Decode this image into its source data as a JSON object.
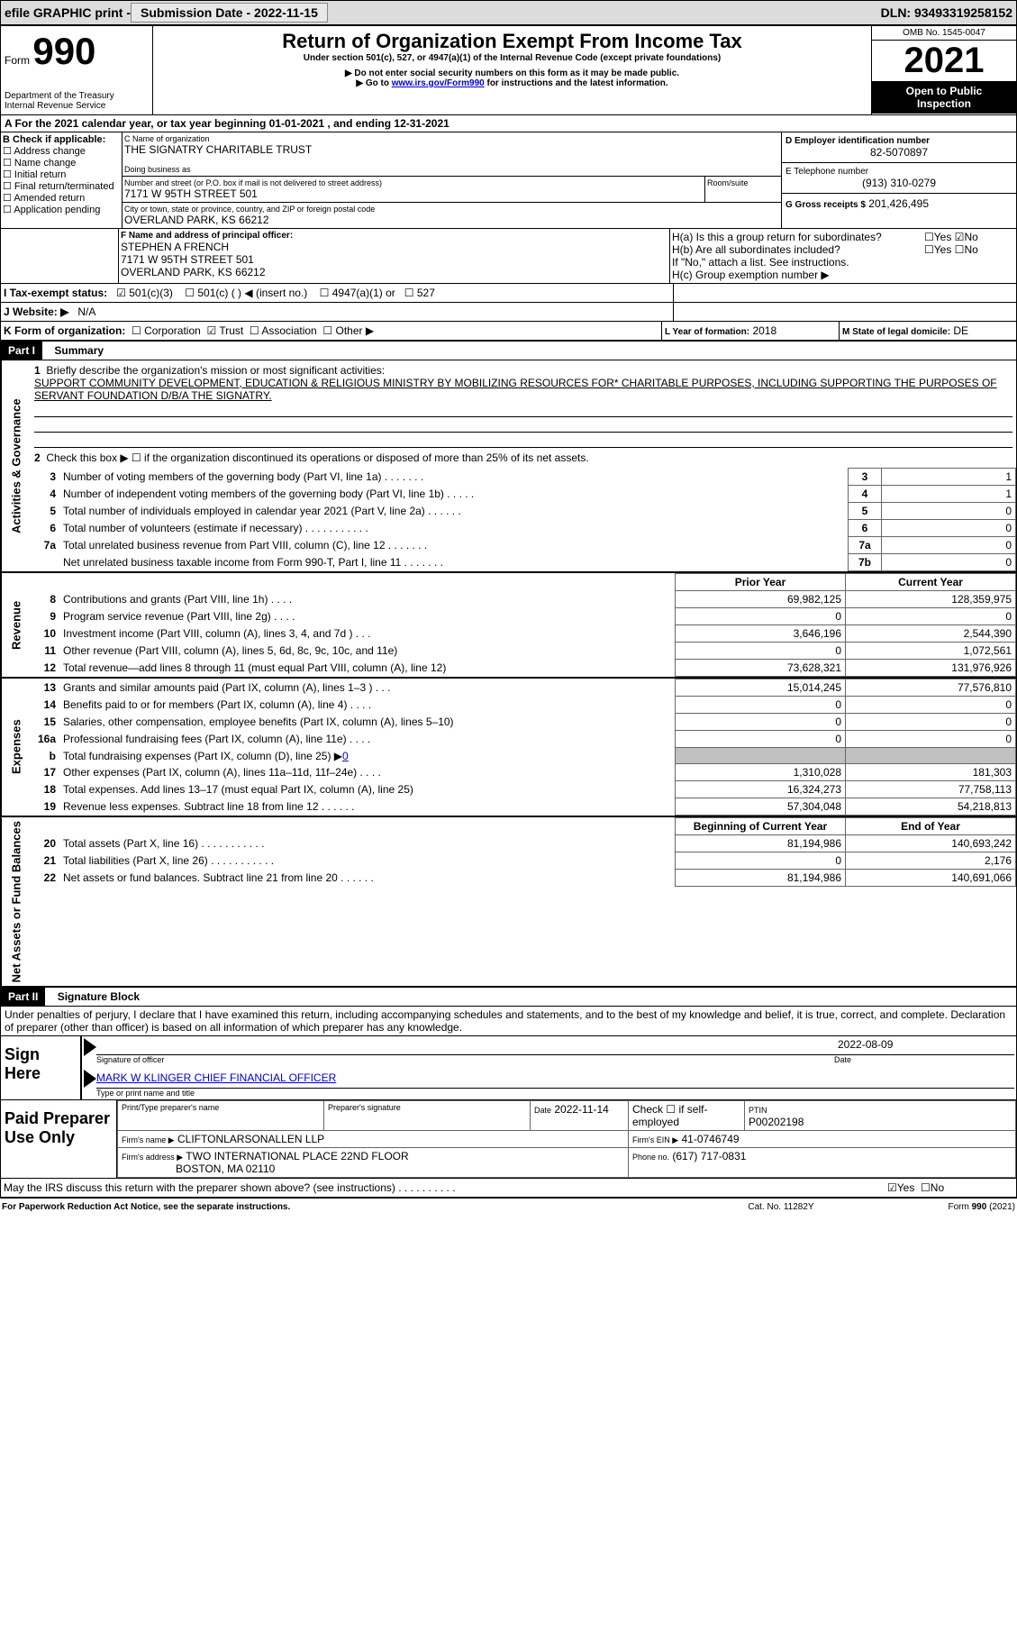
{
  "topbar": {
    "efile": "efile GRAPHIC print -",
    "submission": "Submission Date - 2022-11-15",
    "dln_label": "DLN:",
    "dln": "93493319258152"
  },
  "header": {
    "form_word": "Form",
    "form_num": "990",
    "dept": "Department of the Treasury",
    "irs": "Internal Revenue Service",
    "title": "Return of Organization Exempt From Income Tax",
    "subtitle": "Under section 501(c), 527, or 4947(a)(1) of the Internal Revenue Code (except private foundations)",
    "warn1": "▶ Do not enter social security numbers on this form as it may be made public.",
    "warn2_a": "▶ Go to ",
    "warn2_link": "www.irs.gov/Form990",
    "warn2_b": " for instructions and the latest information.",
    "omb": "OMB No. 1545-0047",
    "year": "2021",
    "open1": "Open to Public",
    "open2": "Inspection"
  },
  "lineA": {
    "text_a": "A For the 2021 calendar year, or tax year beginning ",
    "begin": "01-01-2021",
    "text_b": "   , and ending ",
    "end": "12-31-2021"
  },
  "boxB": {
    "label": "B Check if applicable:",
    "items": [
      "Address change",
      "Name change",
      "Initial return",
      "Final return/terminated",
      "Amended return",
      "Application pending"
    ]
  },
  "boxC": {
    "name_label": "C Name of organization",
    "name": "THE SIGNATRY CHARITABLE TRUST",
    "dba_label": "Doing business as",
    "dba": "",
    "addr_label": "Number and street (or P.O. box if mail is not delivered to street address)",
    "room_label": "Room/suite",
    "addr": "7171 W 95TH STREET 501",
    "city_label": "City or town, state or province, country, and ZIP or foreign postal code",
    "city": "OVERLAND PARK, KS  66212"
  },
  "boxD": {
    "label": "D Employer identification number",
    "val": "82-5070897"
  },
  "boxE": {
    "label": "E Telephone number",
    "val": "(913) 310-0279"
  },
  "boxG": {
    "label": "G Gross receipts $",
    "val": "201,426,495"
  },
  "boxF": {
    "label": "F Name and address of principal officer:",
    "name": "STEPHEN A FRENCH",
    "addr1": "7171 W 95TH STREET 501",
    "addr2": "OVERLAND PARK, KS  66212"
  },
  "boxH": {
    "a_label": "H(a)  Is this a group return for subordinates?",
    "b_label": "H(b)  Are all subordinates included?",
    "b_note": "If \"No,\" attach a list. See instructions.",
    "c_label": "H(c)  Group exemption number ▶",
    "yes": "Yes",
    "no": "No",
    "a_checked": "No"
  },
  "boxI": {
    "label": "I   Tax-exempt status:",
    "opt1": "501(c)(3)",
    "opt2": "501(c) (   ) ◀ (insert no.)",
    "opt3": "4947(a)(1) or",
    "opt4": "527",
    "checked": "501(c)(3)"
  },
  "boxJ": {
    "label": "J   Website: ▶",
    "val": "N/A"
  },
  "boxK": {
    "label": "K Form of organization:",
    "opts": [
      "Corporation",
      "Trust",
      "Association",
      "Other ▶"
    ],
    "checked": "Trust"
  },
  "boxL": {
    "label": "L Year of formation:",
    "val": "2018"
  },
  "boxM": {
    "label": "M State of legal domicile:",
    "val": "DE"
  },
  "part1": {
    "label": "Part I",
    "title": "Summary",
    "line1_label": "Briefly describe the organization's mission or most significant activities:",
    "line1_text": "SUPPORT COMMUNITY DEVELOPMENT, EDUCATION & RELIGIOUS MINISTRY BY MOBILIZING RESOURCES FOR* CHARITABLE PURPOSES, INCLUDING SUPPORTING THE PURPOSES OF SERVANT FOUNDATION D/B/A THE SIGNATRY.",
    "line2": "Check this box ▶ ☐ if the organization discontinued its operations or disposed of more than 25% of its net assets.",
    "side_act": "Activities & Governance",
    "side_rev": "Revenue",
    "side_exp": "Expenses",
    "side_net": "Net Assets or Fund Balances",
    "rows_top": [
      {
        "n": "3",
        "d": "Number of voting members of the governing body (Part VI, line 1a)   .    .    .    .    .    .    .",
        "b": "3",
        "v": "1"
      },
      {
        "n": "4",
        "d": "Number of independent voting members of the governing body (Part VI, line 1b)   .    .    .    .    .",
        "b": "4",
        "v": "1"
      },
      {
        "n": "5",
        "d": "Total number of individuals employed in calendar year 2021 (Part V, line 2a)   .    .    .    .    .    .",
        "b": "5",
        "v": "0"
      },
      {
        "n": "6",
        "d": "Total number of volunteers (estimate if necessary)    .    .    .    .    .    .    .    .    .    .    .",
        "b": "6",
        "v": "0"
      },
      {
        "n": "7a",
        "d": "Total unrelated business revenue from Part VIII, column (C), line 12     .    .    .    .    .    .    .",
        "b": "7a",
        "v": "0"
      },
      {
        "n": "",
        "d": "Net unrelated business taxable income from Form 990-T, Part I, line 11   .    .    .    .    .    .    .",
        "b": "7b",
        "v": "0"
      }
    ],
    "col_prior": "Prior Year",
    "col_current": "Current Year",
    "rows_rev": [
      {
        "n": "8",
        "d": "Contributions and grants (Part VIII, line 1h)   .    .    .    .",
        "p": "69,982,125",
        "c": "128,359,975"
      },
      {
        "n": "9",
        "d": "Program service revenue (Part VIII, line 2g)   .    .    .    .",
        "p": "0",
        "c": "0"
      },
      {
        "n": "10",
        "d": "Investment income (Part VIII, column (A), lines 3, 4, and 7d )   .    .    .",
        "p": "3,646,196",
        "c": "2,544,390"
      },
      {
        "n": "11",
        "d": "Other revenue (Part VIII, column (A), lines 5, 6d, 8c, 9c, 10c, and 11e)",
        "p": "0",
        "c": "1,072,561"
      },
      {
        "n": "12",
        "d": "Total revenue—add lines 8 through 11 (must equal Part VIII, column (A), line 12)",
        "p": "73,628,321",
        "c": "131,976,926"
      }
    ],
    "rows_exp": [
      {
        "n": "13",
        "d": "Grants and similar amounts paid (Part IX, column (A), lines 1–3 )   .    .    .",
        "p": "15,014,245",
        "c": "77,576,810"
      },
      {
        "n": "14",
        "d": "Benefits paid to or for members (Part IX, column (A), line 4)   .    .    .    .",
        "p": "0",
        "c": "0"
      },
      {
        "n": "15",
        "d": "Salaries, other compensation, employee benefits (Part IX, column (A), lines 5–10)",
        "p": "0",
        "c": "0"
      },
      {
        "n": "16a",
        "d": "Professional fundraising fees (Part IX, column (A), line 11e)   .    .    .    .",
        "p": "0",
        "c": "0"
      },
      {
        "n": "b",
        "d": "Total fundraising expenses (Part IX, column (D), line 25) ▶",
        "grey": true,
        "fval": "0"
      },
      {
        "n": "17",
        "d": "Other expenses (Part IX, column (A), lines 11a–11d, 11f–24e)   .    .    .    .",
        "p": "1,310,028",
        "c": "181,303"
      },
      {
        "n": "18",
        "d": "Total expenses. Add lines 13–17 (must equal Part IX, column (A), line 25)",
        "p": "16,324,273",
        "c": "77,758,113"
      },
      {
        "n": "19",
        "d": "Revenue less expenses. Subtract line 18 from line 12   .    .    .    .    .    .",
        "p": "57,304,048",
        "c": "54,218,813"
      }
    ],
    "col_begin": "Beginning of Current Year",
    "col_end": "End of Year",
    "rows_net": [
      {
        "n": "20",
        "d": "Total assets (Part X, line 16)   .    .    .    .    .    .    .    .    .    .    .",
        "p": "81,194,986",
        "c": "140,693,242"
      },
      {
        "n": "21",
        "d": "Total liabilities (Part X, line 26)   .    .    .    .    .    .    .    .    .    .    .",
        "p": "0",
        "c": "2,176"
      },
      {
        "n": "22",
        "d": "Net assets or fund balances. Subtract line 21 from line 20   .    .    .    .    .    .",
        "p": "81,194,986",
        "c": "140,691,066"
      }
    ]
  },
  "part2": {
    "label": "Part II",
    "title": "Signature Block",
    "penalties": "Under penalties of perjury, I declare that I have examined this return, including accompanying schedules and statements, and to the best of my knowledge and belief, it is true, correct, and complete. Declaration of preparer (other than officer) is based on all information of which preparer has any knowledge.",
    "sign_here": "Sign Here",
    "sig_officer": "Signature of officer",
    "sig_date": "2022-08-09",
    "date_label": "Date",
    "officer_name": "MARK W KLINGER  CHIEF FINANCIAL OFFICER",
    "type_name": "Type or print name and title",
    "paid": "Paid Preparer Use Only",
    "prep_name_label": "Print/Type preparer's name",
    "prep_sig_label": "Preparer's signature",
    "prep_date_label": "Date",
    "prep_date": "2022-11-14",
    "check_self": "Check ☐ if self-employed",
    "ptin_label": "PTIN",
    "ptin": "P00202198",
    "firm_name_label": "Firm's name    ▶",
    "firm_name": "CLIFTONLARSONALLEN LLP",
    "firm_ein_label": "Firm's EIN ▶",
    "firm_ein": "41-0746749",
    "firm_addr_label": "Firm's address ▶",
    "firm_addr1": "TWO INTERNATIONAL PLACE 22ND FLOOR",
    "firm_addr2": "BOSTON, MA  02110",
    "phone_label": "Phone no.",
    "phone": "(617) 717-0831",
    "discuss": "May the IRS discuss this return with the preparer shown above? (see instructions)   .    .    .    .    .    .    .    .    .    .",
    "discuss_yes": "Yes",
    "discuss_no": "No"
  },
  "footer": {
    "left": "For Paperwork Reduction Act Notice, see the separate instructions.",
    "mid": "Cat. No. 11282Y",
    "right": "Form 990 (2021)"
  }
}
